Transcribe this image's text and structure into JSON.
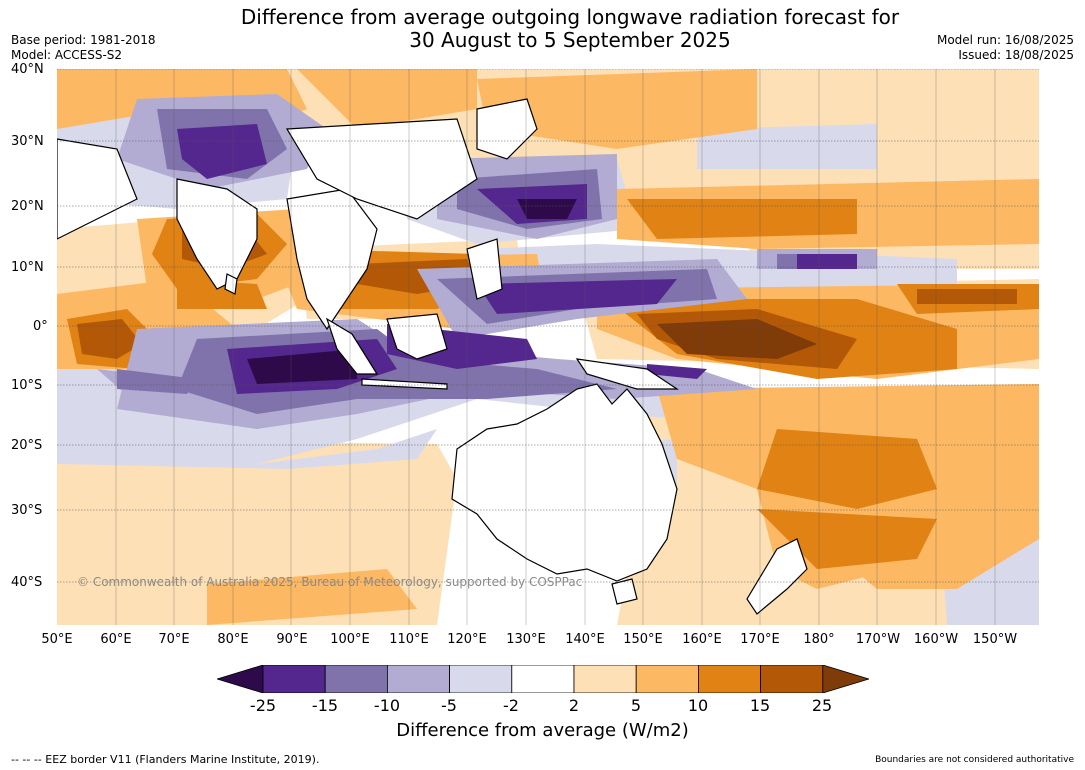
{
  "title": {
    "line1": "Difference from average outgoing longwave radiation forecast for",
    "line2": "30 August to 5 September 2025"
  },
  "meta": {
    "base_period": "Base period: 1981-2018",
    "model": "Model: ACCESS-S2",
    "model_run": "Model run: 16/08/2025",
    "issued": "Issued: 18/08/2025"
  },
  "map": {
    "lat_labels": [
      "40°N",
      "30°N",
      "20°N",
      "10°N",
      "0°",
      "10°S",
      "20°S",
      "30°S",
      "40°S"
    ],
    "lon_labels": [
      "50°E",
      "60°E",
      "70°E",
      "80°E",
      "90°E",
      "100°E",
      "110°E",
      "120°E",
      "130°E",
      "140°E",
      "150°E",
      "160°E",
      "170°E",
      "180°",
      "170°W",
      "160°W",
      "150°W"
    ],
    "copyright": "© Commonwealth of Australia 2025, Bureau of Meteorology, supported by COSPPac",
    "colors": {
      "ocean_white": "#ffffff",
      "coast": "#000000",
      "border": "#888888",
      "grid": "#555555"
    }
  },
  "colorbar": {
    "tick_labels": [
      "-25",
      "-15",
      "-10",
      "-5",
      "-2",
      "2",
      "5",
      "10",
      "15",
      "25"
    ],
    "colors": [
      "#2e0a4a",
      "#54278f",
      "#8073ac",
      "#b2abd2",
      "#d8daeb",
      "#ffffff",
      "#fee0b6",
      "#fdb863",
      "#e08214",
      "#b35806",
      "#7f3b08"
    ],
    "label": "Difference from average (W/m2)"
  },
  "footer": {
    "eez": "--  --  -- EEZ border V11 (Flanders Marine Institute, 2019).",
    "disclaimer": "Boundaries are not considered authoritative"
  }
}
